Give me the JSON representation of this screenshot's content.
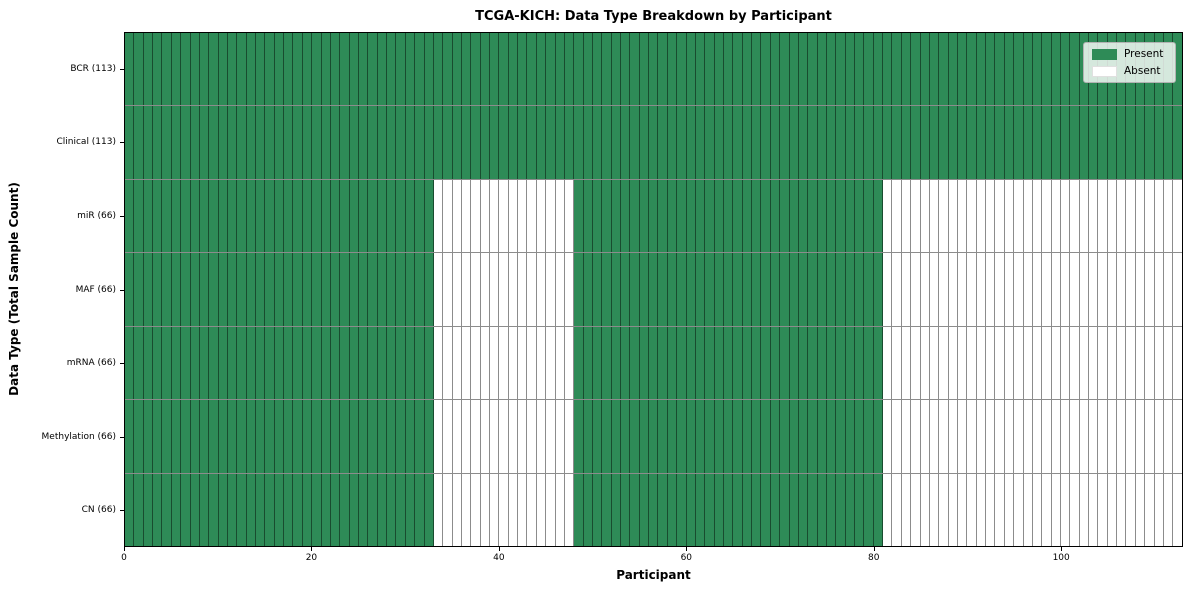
{
  "chart_data": {
    "type": "heatmap",
    "title": "TCGA-KICH: Data Type Breakdown by Participant",
    "xlabel": "Participant",
    "ylabel": "Data Type (Total Sample Count)",
    "x_ticks": [
      0,
      20,
      40,
      60,
      80,
      100
    ],
    "x_range": [
      0,
      113
    ],
    "n_participants": 113,
    "rows": [
      {
        "label": "BCR (113)",
        "data_type": "BCR",
        "total_samples": 113,
        "present_ranges": [
          [
            0,
            113
          ]
        ]
      },
      {
        "label": "Clinical (113)",
        "data_type": "Clinical",
        "total_samples": 113,
        "present_ranges": [
          [
            0,
            113
          ]
        ]
      },
      {
        "label": "miR (66)",
        "data_type": "miR",
        "total_samples": 66,
        "present_ranges": [
          [
            0,
            33
          ],
          [
            48,
            81
          ]
        ]
      },
      {
        "label": "MAF (66)",
        "data_type": "MAF",
        "total_samples": 66,
        "present_ranges": [
          [
            0,
            33
          ],
          [
            48,
            81
          ]
        ]
      },
      {
        "label": "mRNA (66)",
        "data_type": "mRNA",
        "total_samples": 66,
        "present_ranges": [
          [
            0,
            33
          ],
          [
            48,
            81
          ]
        ]
      },
      {
        "label": "Methylation (66)",
        "data_type": "Methylation",
        "total_samples": 66,
        "present_ranges": [
          [
            0,
            33
          ],
          [
            48,
            81
          ]
        ]
      },
      {
        "label": "CN (66)",
        "data_type": "CN",
        "total_samples": 66,
        "present_ranges": [
          [
            0,
            33
          ],
          [
            48,
            81
          ]
        ]
      }
    ],
    "legend": [
      {
        "label": "Present",
        "color": "#2e8b57"
      },
      {
        "label": "Absent",
        "color": "#ffffff"
      }
    ],
    "colors": {
      "present": "#2e8b57",
      "absent": "#ffffff",
      "cell_edge": "rgba(0,0,0,0.45)"
    },
    "legend_position": "upper right",
    "grid": false
  }
}
